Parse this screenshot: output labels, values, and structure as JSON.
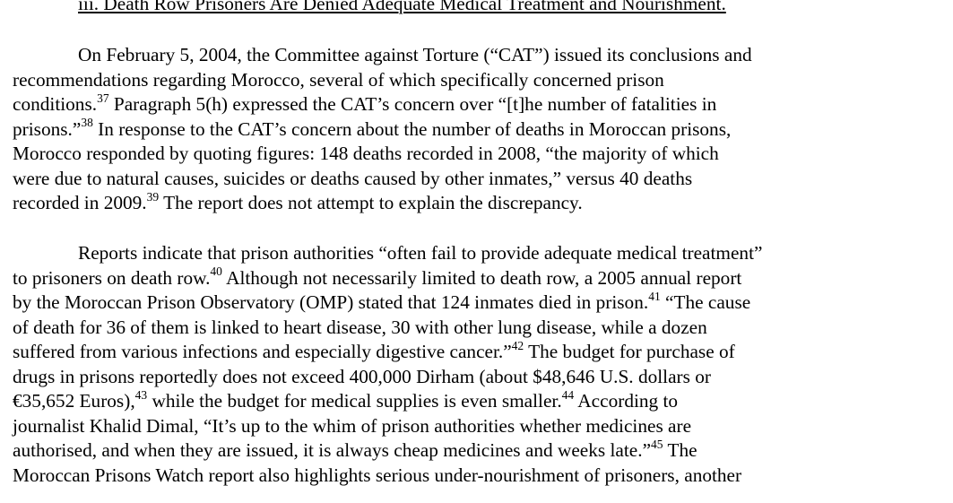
{
  "heading": "iii. Death Row Prisoners Are Denied Adequate Medical Treatment and Nourishment.",
  "paragraph1": {
    "lines": [
      [
        {
          "t": "On February 5, 2004, the Committee against Torture (“CAT”) issued its conclusions and"
        }
      ],
      [
        {
          "t": "recommendations regarding Morocco, several of which specifically concerned prison"
        }
      ],
      [
        {
          "t": "conditions."
        },
        {
          "s": "37"
        },
        {
          "t": "  Paragraph 5(h) expressed the CAT’s concern over “[t]he number of fatalities in"
        }
      ],
      [
        {
          "t": "prisons.”"
        },
        {
          "s": "38"
        },
        {
          "t": "  In response to the CAT’s concern about the number of deaths in Moroccan prisons,"
        }
      ],
      [
        {
          "t": "Morocco responded by quoting figures: 148 deaths recorded in 2008, “the majority of which"
        }
      ],
      [
        {
          "t": "were due to natural causes, suicides or deaths caused by other inmates,” versus 40 deaths"
        }
      ],
      [
        {
          "t": "recorded in 2009."
        },
        {
          "s": "39"
        },
        {
          "t": "  The report does not attempt to explain the discrepancy."
        }
      ]
    ]
  },
  "paragraph2": {
    "lines": [
      [
        {
          "t": "Reports indicate that prison authorities “often fail to provide adequate medical treatment”"
        }
      ],
      [
        {
          "t": "to prisoners on death row."
        },
        {
          "s": "40"
        },
        {
          "t": "  Although not necessarily limited to death row, a 2005 annual report"
        }
      ],
      [
        {
          "t": "by the Moroccan Prison Observatory (OMP) stated that 124 inmates died in prison."
        },
        {
          "s": "41"
        },
        {
          "t": "  “The cause"
        }
      ],
      [
        {
          "t": "of death for 36 of them is linked to heart disease, 30 with other lung disease, while a dozen"
        }
      ],
      [
        {
          "t": "suffered from various infections and especially digestive cancer.”"
        },
        {
          "s": "42"
        },
        {
          "t": "  The budget for purchase of"
        }
      ],
      [
        {
          "t": "drugs in prisons reportedly does not exceed 400,000 Dirham (about $48,646 U.S. dollars or"
        }
      ],
      [
        {
          "t": "€35,652 Euros),"
        },
        {
          "s": "43"
        },
        {
          "t": " while the budget for medical supplies is even smaller."
        },
        {
          "s": "44"
        },
        {
          "t": "  According to"
        }
      ],
      [
        {
          "t": "journalist Khalid Dimal, “It’s up to the whim of prison authorities whether medicines are"
        }
      ],
      [
        {
          "t": "authorised, and when they are issued, it is always cheap medicines and weeks late.”"
        },
        {
          "s": "45"
        },
        {
          "t": "  The"
        }
      ],
      [
        {
          "t": "Moroccan Prisons Watch report also highlights serious under-nourishment of prisoners, another"
        }
      ]
    ]
  }
}
